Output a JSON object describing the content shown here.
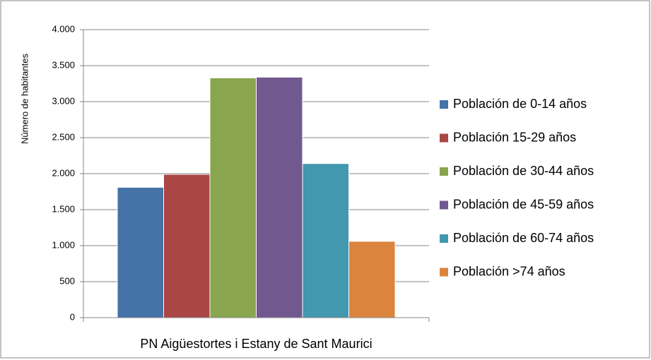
{
  "chart_data": {
    "type": "bar",
    "categories": [
      "PN Aigüestortes i Estany de Sant Maurici"
    ],
    "y_label": "Número de habitantes",
    "series": [
      {
        "name": "Población de 0-14 años",
        "color": "#4572a7",
        "values": [
          1810
        ]
      },
      {
        "name": "Población 15-29 años",
        "color": "#aa4643",
        "values": [
          1990
        ]
      },
      {
        "name": "Población de 30-44 años",
        "color": "#89a54e",
        "values": [
          3330
        ]
      },
      {
        "name": "Población de 45-59 años",
        "color": "#71588f",
        "values": [
          3340
        ]
      },
      {
        "name": "Población de 60-74 años",
        "color": "#4198af",
        "values": [
          2140
        ]
      },
      {
        "name": "Población >74 años",
        "color": "#db843d",
        "values": [
          1060
        ]
      }
    ],
    "ylim": [
      0,
      4000
    ],
    "yticks": [
      0,
      500,
      {
        "value": 1000,
        "label": "1.000"
      },
      {
        "value": 1500,
        "label": "1.500"
      },
      {
        "value": 2000,
        "label": "2.000"
      },
      {
        "value": 2500,
        "label": "2.500"
      },
      {
        "value": 3000,
        "label": "3.000"
      },
      {
        "value": 3500,
        "label": "3.500"
      },
      {
        "value": 4000,
        "label": "4.000"
      }
    ],
    "grid": true,
    "legend": "right"
  }
}
